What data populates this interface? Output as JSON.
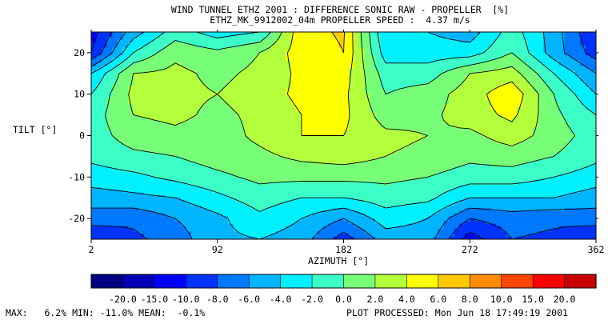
{
  "header": {
    "title": "WIND TUNNEL ETHZ 2001 : DIFFERENCE SONIC RAW - PROPELLER  [%]",
    "subtitle": "ETHZ_MK_9912002_04m PROPELLER SPEED :  4.37 m/s"
  },
  "chart_data": {
    "type": "heatmap",
    "title": "WIND TUNNEL ETHZ 2001 : DIFFERENCE SONIC RAW - PROPELLER  [%]",
    "subtitle": "ETHZ_MK_9912002_04m PROPELLER SPEED :  4.37 m/s",
    "xlabel": "AZIMUTH [°]",
    "ylabel": "TILT [°]",
    "xlim": [
      2,
      362
    ],
    "ylim": [
      -25,
      25
    ],
    "x_ticks": [
      2,
      92,
      182,
      272,
      362
    ],
    "y_ticks": [
      -20,
      -10,
      0,
      10,
      20
    ],
    "x_grid": [
      2,
      32,
      62,
      92,
      122,
      152,
      182,
      212,
      242,
      272,
      302,
      332,
      362
    ],
    "y_grid": [
      25,
      20,
      15,
      10,
      5,
      0,
      -5,
      -10,
      -15,
      -20,
      -25
    ],
    "z": [
      [
        -11,
        -5,
        -1,
        -3,
        -2,
        5.5,
        6.2,
        -4,
        -4,
        -5,
        -1,
        -5,
        -10
      ],
      [
        -10,
        -2,
        1.5,
        0.5,
        2,
        5,
        6,
        -3,
        -3,
        -3,
        0,
        -5,
        -9
      ],
      [
        -4,
        2,
        2.5,
        1.5,
        2.5,
        4.5,
        5,
        -1,
        -1,
        2,
        3,
        -2,
        -6
      ],
      [
        -2,
        2.5,
        2.5,
        2,
        3,
        4.5,
        4.5,
        0,
        1,
        3,
        5.5,
        0,
        -4
      ],
      [
        -1,
        2,
        2.5,
        1.5,
        2.5,
        4,
        4.5,
        1,
        1.5,
        3,
        4.5,
        0.5,
        -2
      ],
      [
        -1,
        1,
        1.5,
        1,
        2.5,
        4,
        4,
        2.5,
        2,
        1.5,
        3,
        1,
        -1
      ],
      [
        -1.5,
        -0.5,
        0,
        1,
        1.5,
        2.5,
        3,
        2,
        1.5,
        0.5,
        1,
        0,
        -1.5
      ],
      [
        -3,
        -2.5,
        -1.5,
        -0.5,
        0.5,
        0.5,
        0.5,
        0.5,
        0,
        -1,
        -1,
        -2,
        -3
      ],
      [
        -5,
        -4.5,
        -4,
        -2.5,
        -1,
        -2,
        -2,
        -1,
        -1.5,
        -4,
        -4,
        -4,
        -5
      ],
      [
        -7,
        -7.5,
        -6,
        -4.5,
        -2.5,
        -4,
        -6,
        -3,
        -4,
        -8,
        -7,
        -7.5,
        -7
      ],
      [
        -10,
        -8.5,
        -7,
        -4.5,
        -4,
        -5,
        -9,
        -5,
        -5,
        -11,
        -8,
        -8.5,
        -10
      ]
    ],
    "levels": [
      -20.0,
      -15.0,
      -10.0,
      -8.0,
      -6.0,
      -4.0,
      -2.0,
      0.0,
      2.0,
      4.0,
      6.0,
      8.0,
      10.0,
      15.0,
      20.0
    ],
    "level_labels": [
      "-20.0",
      "-15.0",
      "-10.0",
      "-8.0",
      "-6.0",
      "-4.0",
      "-2.0",
      "0.0",
      "2.0",
      "4.0",
      "6.0",
      "8.0",
      "10.0",
      "15.0",
      "20.0"
    ],
    "colors": [
      "#000080",
      "#0000b4",
      "#0000ff",
      "#0032ff",
      "#0078ff",
      "#00b4ff",
      "#00f0ff",
      "#3cffc8",
      "#78ff78",
      "#b4ff3c",
      "#ffff00",
      "#ffc800",
      "#ff8c00",
      "#ff4600",
      "#ff0000",
      "#c80000"
    ],
    "contour_color": "#000000",
    "grid": false,
    "legend": "bottom"
  },
  "footer": {
    "stats_line": "MAX:   6.2% MIN: -11.0% MEAN:  -0.1%",
    "processed_line": "PLOT PROCESSED: Mon Jun 18 17:49:19 2001"
  }
}
